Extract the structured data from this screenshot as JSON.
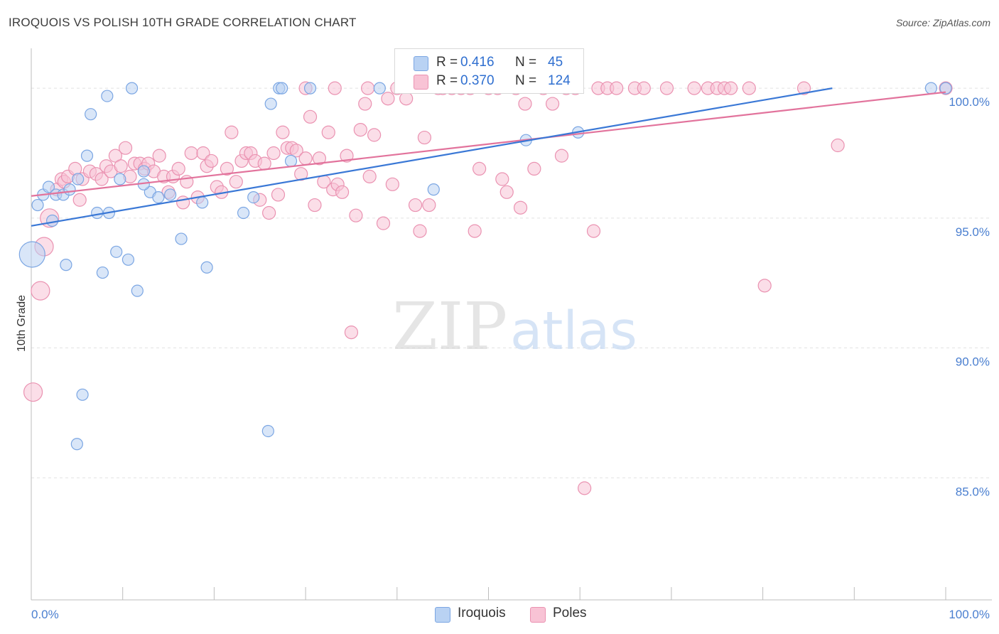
{
  "header": {
    "title": "IROQUOIS VS POLISH 10TH GRADE CORRELATION CHART",
    "source": "Source: ZipAtlas.com"
  },
  "legend": {
    "rows": [
      {
        "r_label": "R =",
        "r_value": "0.416",
        "n_label": "N =",
        "n_value": "45"
      },
      {
        "r_label": "R =",
        "r_value": "0.370",
        "n_label": "N =",
        "n_value": "124"
      }
    ],
    "bottom": [
      "Iroquois",
      "Poles"
    ]
  },
  "colors": {
    "blue_fill": "#b9d2f3",
    "blue_stroke": "#7ba6e3",
    "blue_line": "#3a78d6",
    "pink_fill": "#f8c3d5",
    "pink_stroke": "#ea92b1",
    "pink_line": "#e2739c",
    "tick_text": "#4a7fd0"
  },
  "watermark": {
    "zip": "ZIP",
    "atlas": "atlas"
  },
  "chart_data": {
    "type": "scatter",
    "title": "IROQUOIS VS POLISH 10TH GRADE CORRELATION CHART",
    "xlabel": "",
    "ylabel": "10th Grade",
    "xlim": [
      0,
      100
    ],
    "ylim": [
      80.3,
      101.7
    ],
    "x_tick_labels": [
      "0.0%",
      "100.0%"
    ],
    "y_ticks": [
      85,
      90,
      95,
      100
    ],
    "y_tick_labels": [
      "85.0%",
      "90.0%",
      "95.0%",
      "100.0%"
    ],
    "grid": true,
    "series": [
      {
        "name": "Iroquois",
        "r": 0.416,
        "n": 45,
        "trend": {
          "x": [
            0,
            87.6
          ],
          "y": [
            94.7,
            100.0
          ]
        },
        "points": [
          {
            "x": 0.1,
            "y": 93.6,
            "s": 18
          },
          {
            "x": 0.7,
            "y": 95.5
          },
          {
            "x": 1.3,
            "y": 95.9
          },
          {
            "x": 1.9,
            "y": 96.2
          },
          {
            "x": 2.3,
            "y": 94.9
          },
          {
            "x": 2.7,
            "y": 95.9
          },
          {
            "x": 3.5,
            "y": 95.9
          },
          {
            "x": 3.8,
            "y": 93.2
          },
          {
            "x": 4.2,
            "y": 96.1
          },
          {
            "x": 5.1,
            "y": 96.5
          },
          {
            "x": 5.6,
            "y": 88.2
          },
          {
            "x": 6.1,
            "y": 97.4
          },
          {
            "x": 6.5,
            "y": 99.0
          },
          {
            "x": 7.2,
            "y": 95.2
          },
          {
            "x": 7.8,
            "y": 92.9
          },
          {
            "x": 8.3,
            "y": 99.7
          },
          {
            "x": 8.5,
            "y": 95.2
          },
          {
            "x": 9.3,
            "y": 93.7
          },
          {
            "x": 9.7,
            "y": 96.5
          },
          {
            "x": 10.6,
            "y": 93.4
          },
          {
            "x": 11.0,
            "y": 100.0
          },
          {
            "x": 11.6,
            "y": 92.2
          },
          {
            "x": 12.3,
            "y": 96.8
          },
          {
            "x": 13.0,
            "y": 96.0
          },
          {
            "x": 13.9,
            "y": 95.8
          },
          {
            "x": 15.2,
            "y": 95.9
          },
          {
            "x": 16.4,
            "y": 94.2
          },
          {
            "x": 18.7,
            "y": 95.6
          },
          {
            "x": 19.2,
            "y": 93.1
          },
          {
            "x": 23.2,
            "y": 95.2
          },
          {
            "x": 24.3,
            "y": 95.8
          },
          {
            "x": 25.9,
            "y": 86.8
          },
          {
            "x": 26.2,
            "y": 99.4
          },
          {
            "x": 27.1,
            "y": 100.0
          },
          {
            "x": 27.4,
            "y": 100.0
          },
          {
            "x": 28.4,
            "y": 97.2
          },
          {
            "x": 30.5,
            "y": 100.0
          },
          {
            "x": 38.1,
            "y": 100.0
          },
          {
            "x": 44.0,
            "y": 96.1
          },
          {
            "x": 54.1,
            "y": 98.0
          },
          {
            "x": 59.8,
            "y": 98.3
          },
          {
            "x": 98.4,
            "y": 100.0
          },
          {
            "x": 100.0,
            "y": 100.0
          },
          {
            "x": 5.0,
            "y": 86.3
          },
          {
            "x": 12.3,
            "y": 96.3
          }
        ]
      },
      {
        "name": "Poles",
        "r": 0.37,
        "n": 124,
        "trend": {
          "x": [
            0,
            100
          ],
          "y": [
            95.85,
            99.85
          ]
        },
        "points": [
          {
            "x": 0.2,
            "y": 88.3,
            "s": 13
          },
          {
            "x": 1.0,
            "y": 92.2,
            "s": 13
          },
          {
            "x": 1.4,
            "y": 93.9,
            "s": 13
          },
          {
            "x": 2.0,
            "y": 95.0,
            "s": 13
          },
          {
            "x": 2.8,
            "y": 96.1
          },
          {
            "x": 3.3,
            "y": 96.5
          },
          {
            "x": 3.6,
            "y": 96.4
          },
          {
            "x": 4.0,
            "y": 96.6
          },
          {
            "x": 4.8,
            "y": 96.9
          },
          {
            "x": 5.3,
            "y": 95.7
          },
          {
            "x": 5.6,
            "y": 96.5
          },
          {
            "x": 6.4,
            "y": 96.8
          },
          {
            "x": 7.1,
            "y": 96.7
          },
          {
            "x": 7.7,
            "y": 96.5
          },
          {
            "x": 8.2,
            "y": 97.0
          },
          {
            "x": 8.7,
            "y": 96.8
          },
          {
            "x": 9.2,
            "y": 97.4
          },
          {
            "x": 9.8,
            "y": 97.0
          },
          {
            "x": 10.3,
            "y": 97.7
          },
          {
            "x": 10.8,
            "y": 96.6
          },
          {
            "x": 11.3,
            "y": 97.1
          },
          {
            "x": 11.9,
            "y": 97.1
          },
          {
            "x": 12.4,
            "y": 96.9
          },
          {
            "x": 12.8,
            "y": 97.1
          },
          {
            "x": 13.4,
            "y": 96.8
          },
          {
            "x": 14.0,
            "y": 97.4
          },
          {
            "x": 14.5,
            "y": 96.6
          },
          {
            "x": 15.0,
            "y": 96.0
          },
          {
            "x": 15.5,
            "y": 96.6
          },
          {
            "x": 16.1,
            "y": 96.9
          },
          {
            "x": 16.6,
            "y": 95.6
          },
          {
            "x": 17.0,
            "y": 96.4
          },
          {
            "x": 17.5,
            "y": 97.5
          },
          {
            "x": 18.2,
            "y": 95.8
          },
          {
            "x": 18.8,
            "y": 97.5
          },
          {
            "x": 19.2,
            "y": 97.0
          },
          {
            "x": 19.7,
            "y": 97.2
          },
          {
            "x": 20.3,
            "y": 96.2
          },
          {
            "x": 20.8,
            "y": 96.0
          },
          {
            "x": 21.4,
            "y": 96.9
          },
          {
            "x": 21.9,
            "y": 98.3
          },
          {
            "x": 22.4,
            "y": 96.4
          },
          {
            "x": 23.0,
            "y": 97.2
          },
          {
            "x": 23.5,
            "y": 97.5
          },
          {
            "x": 24.0,
            "y": 97.5
          },
          {
            "x": 24.5,
            "y": 97.2
          },
          {
            "x": 25.0,
            "y": 95.7
          },
          {
            "x": 25.5,
            "y": 97.1
          },
          {
            "x": 26.0,
            "y": 95.2
          },
          {
            "x": 26.5,
            "y": 97.5
          },
          {
            "x": 27.0,
            "y": 95.9
          },
          {
            "x": 27.5,
            "y": 98.3
          },
          {
            "x": 28.0,
            "y": 97.7
          },
          {
            "x": 28.5,
            "y": 97.7
          },
          {
            "x": 29.0,
            "y": 97.6
          },
          {
            "x": 29.5,
            "y": 96.7
          },
          {
            "x": 30.0,
            "y": 97.3
          },
          {
            "x": 30.5,
            "y": 98.9
          },
          {
            "x": 31.0,
            "y": 95.5
          },
          {
            "x": 31.5,
            "y": 97.3
          },
          {
            "x": 32.0,
            "y": 96.4
          },
          {
            "x": 32.5,
            "y": 98.3
          },
          {
            "x": 33.0,
            "y": 96.1
          },
          {
            "x": 33.5,
            "y": 96.3
          },
          {
            "x": 34.0,
            "y": 96.0
          },
          {
            "x": 34.5,
            "y": 97.4
          },
          {
            "x": 35.0,
            "y": 90.6
          },
          {
            "x": 35.5,
            "y": 95.1
          },
          {
            "x": 36.0,
            "y": 98.4
          },
          {
            "x": 36.5,
            "y": 99.4
          },
          {
            "x": 37.0,
            "y": 96.6
          },
          {
            "x": 37.5,
            "y": 98.2
          },
          {
            "x": 38.5,
            "y": 94.8
          },
          {
            "x": 39.0,
            "y": 99.6
          },
          {
            "x": 39.5,
            "y": 96.3
          },
          {
            "x": 40.0,
            "y": 100.0
          },
          {
            "x": 41.0,
            "y": 99.6
          },
          {
            "x": 42.0,
            "y": 95.5
          },
          {
            "x": 42.5,
            "y": 94.5
          },
          {
            "x": 43.0,
            "y": 98.1
          },
          {
            "x": 43.5,
            "y": 95.5
          },
          {
            "x": 44.5,
            "y": 100.0
          },
          {
            "x": 45.0,
            "y": 100.0
          },
          {
            "x": 46.0,
            "y": 100.0
          },
          {
            "x": 47.0,
            "y": 100.0
          },
          {
            "x": 48.0,
            "y": 100.0
          },
          {
            "x": 48.5,
            "y": 94.5
          },
          {
            "x": 49.0,
            "y": 96.9
          },
          {
            "x": 50.0,
            "y": 100.0
          },
          {
            "x": 51.0,
            "y": 100.0
          },
          {
            "x": 51.5,
            "y": 96.5
          },
          {
            "x": 52.0,
            "y": 96.0
          },
          {
            "x": 53.0,
            "y": 100.0
          },
          {
            "x": 53.5,
            "y": 95.4
          },
          {
            "x": 54.0,
            "y": 99.4
          },
          {
            "x": 55.0,
            "y": 96.9
          },
          {
            "x": 56.0,
            "y": 100.0
          },
          {
            "x": 57.0,
            "y": 99.4
          },
          {
            "x": 58.0,
            "y": 97.4
          },
          {
            "x": 59.5,
            "y": 100.0
          },
          {
            "x": 60.5,
            "y": 84.6
          },
          {
            "x": 61.5,
            "y": 94.5
          },
          {
            "x": 62.0,
            "y": 100.0
          },
          {
            "x": 63.0,
            "y": 100.0
          },
          {
            "x": 64.0,
            "y": 100.0
          },
          {
            "x": 66.0,
            "y": 100.0
          },
          {
            "x": 67.0,
            "y": 100.0
          },
          {
            "x": 69.5,
            "y": 100.0
          },
          {
            "x": 72.5,
            "y": 100.0
          },
          {
            "x": 74.0,
            "y": 100.0
          },
          {
            "x": 75.0,
            "y": 100.0
          },
          {
            "x": 75.8,
            "y": 100.0
          },
          {
            "x": 76.5,
            "y": 100.0
          },
          {
            "x": 78.5,
            "y": 100.0
          },
          {
            "x": 80.2,
            "y": 92.4
          },
          {
            "x": 84.5,
            "y": 100.0
          },
          {
            "x": 88.2,
            "y": 97.8
          },
          {
            "x": 100.0,
            "y": 100.0
          },
          {
            "x": 58.5,
            "y": 100.0
          },
          {
            "x": 36.8,
            "y": 100.0
          },
          {
            "x": 33.2,
            "y": 100.0
          },
          {
            "x": 30.0,
            "y": 100.0
          }
        ]
      }
    ]
  }
}
